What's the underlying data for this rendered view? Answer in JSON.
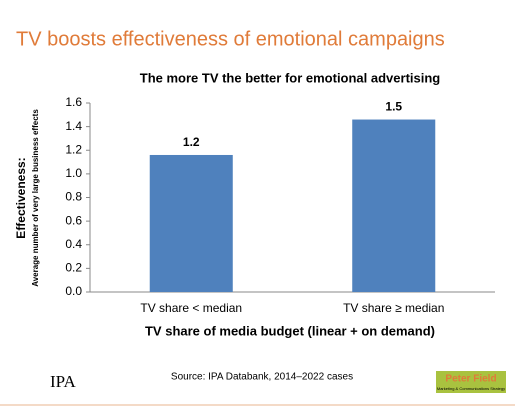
{
  "header": {
    "title": "TV boosts effectiveness of emotional campaigns"
  },
  "chart_data": {
    "type": "bar",
    "title": "The more TV the better for emotional advertising",
    "categories": [
      "TV share < median",
      "TV share ≥ median"
    ],
    "values": [
      1.16,
      1.46
    ],
    "value_labels": [
      "1.2",
      "1.5"
    ],
    "color": "#4f81bd",
    "ylim": [
      0,
      1.6
    ],
    "yticks": [
      {
        "value": 0,
        "label": "0.0"
      },
      0.2,
      0.4,
      0.6,
      0.8,
      {
        "value": 1,
        "label": "1.0"
      },
      1.2,
      1.4,
      1.6
    ],
    "ylabel": "Effectiveness:",
    "ylabel_note": "Average number of very large business effects",
    "xlabel": "TV share of media budget (linear + on demand)",
    "grid": false
  },
  "footer": {
    "source": "Source: IPA Databank, 2014–2022 cases",
    "logo_left": "IPA",
    "logo_right": "Peter Field",
    "logo_right_note": "Marketing & Communications Strategy"
  }
}
